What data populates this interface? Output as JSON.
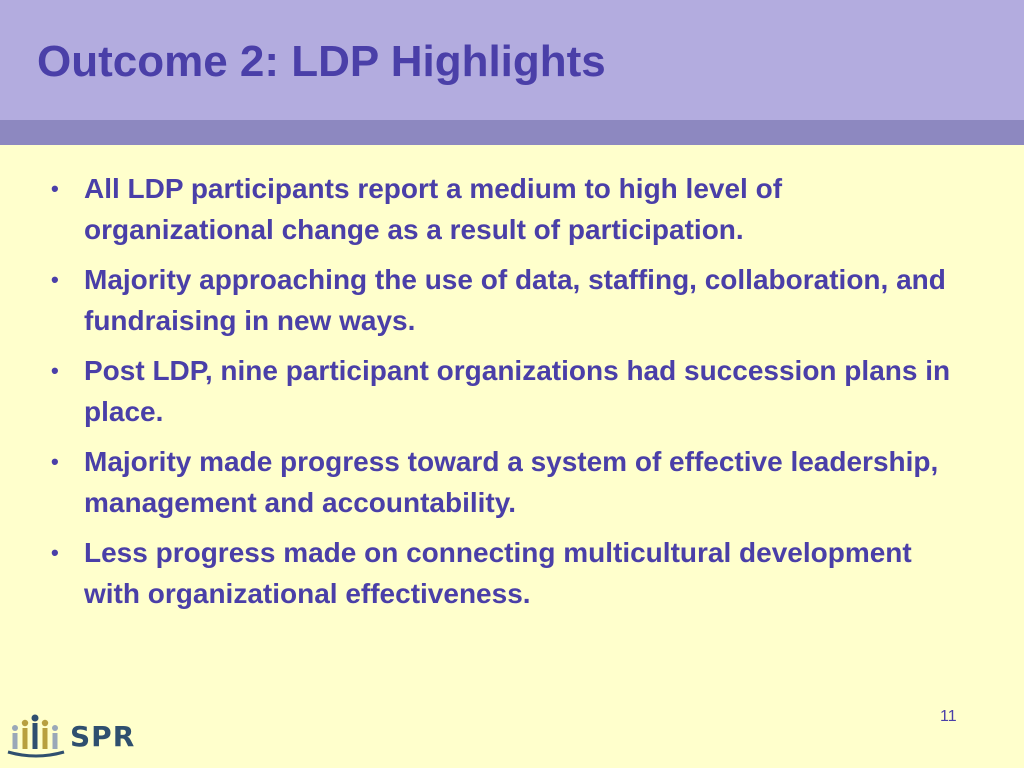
{
  "slide": {
    "title": "Outcome 2: LDP Highlights",
    "bullets": [
      "All LDP participants report a medium to high level of organizational change as a result of participation.",
      "Majority approaching the use of data, staffing, collaboration, and fundraising in new ways.",
      "Post LDP, nine participant organizations had succession plans in place.",
      "Majority made progress toward a system of effective leadership, management and accountability.",
      "Less progress made on connecting multicultural development with organizational effectiveness."
    ],
    "page_number": "11"
  },
  "logo": {
    "text": "SPR",
    "icon": "spr-logo-icon"
  },
  "colors": {
    "header": "#b3acdf",
    "header_band": "#8d88c0",
    "background": "#ffffcc",
    "text": "#4a3fa8"
  }
}
